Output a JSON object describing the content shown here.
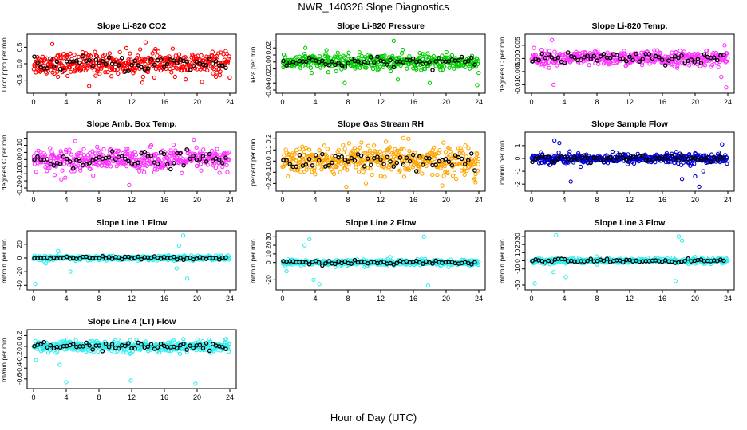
{
  "figure": {
    "title": "NWR_140326  Slope Diagnostics",
    "xlabel": "Hour of Day (UTC)"
  },
  "chart_data": [
    {
      "type": "scatter",
      "title": "Slope Li-820 CO2",
      "ylabel": "Licor ppm per min.",
      "xlim": [
        0,
        24
      ],
      "ylim": [
        -0.8,
        0.8
      ],
      "xticks": [
        "0",
        "4",
        "8",
        "12",
        "16",
        "20",
        "24"
      ],
      "yticks": [
        "-0.5",
        "0.0",
        "0.5"
      ],
      "ytick_values": [
        -0.5,
        0,
        0.5
      ],
      "color": "#ff0000",
      "spread": 0.3,
      "outliers": [
        [
          2.3,
          0.6
        ],
        [
          6.8,
          -0.68
        ],
        [
          13.7,
          0.65
        ],
        [
          20.6,
          -0.55
        ]
      ],
      "series": [
        {
          "name": "",
          "color": "#ff0000"
        },
        {
          "name": "",
          "color": "#000000"
        }
      ]
    },
    {
      "type": "scatter",
      "title": "Slope Li-820 Pressure",
      "ylabel": "kPa per min.",
      "xlim": [
        0,
        24
      ],
      "ylim": [
        -0.04,
        0.035
      ],
      "xticks": [
        "0",
        "4",
        "8",
        "12",
        "16",
        "20",
        "24"
      ],
      "yticks": [
        "-0.04",
        "-0.02",
        "0.00",
        "0.02"
      ],
      "ytick_values": [
        -0.04,
        -0.02,
        0,
        0.02
      ],
      "extra_yticks": [
        "-0.03",
        "-0.01",
        "0.01",
        "0.03"
      ],
      "extra_ytick_values": [
        -0.03,
        -0.01,
        0.01,
        0.03
      ],
      "color": "#00cc00",
      "spread": 0.01,
      "outliers": [
        [
          2.8,
          0.02
        ],
        [
          7.6,
          -0.03
        ],
        [
          13.6,
          0.03
        ],
        [
          14.1,
          -0.025
        ],
        [
          18.0,
          -0.03
        ],
        [
          23.8,
          -0.033
        ]
      ],
      "series": [
        {
          "name": "",
          "color": "#00cc00"
        },
        {
          "name": "",
          "color": "#000000"
        }
      ]
    },
    {
      "type": "scatter",
      "title": "Slope Li-820 Temp.",
      "ylabel": "degrees C per min.",
      "xlim": [
        0,
        24
      ],
      "ylim": [
        -0.012,
        0.008
      ],
      "xticks": [
        "0",
        "4",
        "8",
        "12",
        "16",
        "20",
        "24"
      ],
      "yticks": [
        "-0.010",
        "-0.005",
        "0.000",
        "0.005"
      ],
      "ytick_values": [
        -0.01,
        -0.005,
        0,
        0.005
      ],
      "color": "#ff33ff",
      "spread": 0.0025,
      "outliers": [
        [
          2.5,
          0.007
        ],
        [
          2.7,
          -0.01
        ],
        [
          0.3,
          0.004
        ],
        [
          23.2,
          -0.007
        ],
        [
          23.6,
          0.005
        ],
        [
          23.8,
          -0.011
        ]
      ],
      "series": [
        {
          "name": "",
          "color": "#ff33ff"
        },
        {
          "name": "",
          "color": "#000000"
        }
      ]
    },
    {
      "type": "scatter",
      "title": "Slope Amb. Box Temp.",
      "ylabel": "degrees C per min.",
      "xlim": [
        0,
        24
      ],
      "ylim": [
        -0.2,
        0.17
      ],
      "xticks": [
        "0",
        "4",
        "8",
        "12",
        "16",
        "20",
        "24"
      ],
      "yticks": [
        "-0.20",
        "-0.10",
        "0.00",
        "0.10"
      ],
      "ytick_values": [
        -0.2,
        -0.1,
        0,
        0.1
      ],
      "extra_yticks": [
        "-0.15",
        "-0.05",
        "0.05",
        "0.15"
      ],
      "extra_ytick_values": [
        -0.15,
        -0.05,
        0.05,
        0.15
      ],
      "color": "#ff33ff",
      "spread": 0.07,
      "outliers": [
        [
          11.7,
          -0.18
        ],
        [
          5.1,
          0.13
        ],
        [
          3.4,
          -0.14
        ],
        [
          19.6,
          0.14
        ]
      ],
      "series": [
        {
          "name": "",
          "color": "#ff33ff"
        },
        {
          "name": "",
          "color": "#000000"
        }
      ]
    },
    {
      "type": "scatter",
      "title": "Slope Gas Stream RH",
      "ylabel": "percent per min.",
      "xlim": [
        0,
        24
      ],
      "ylim": [
        -0.24,
        0.23
      ],
      "xticks": [
        "0",
        "4",
        "8",
        "12",
        "16",
        "20",
        "24"
      ],
      "yticks": [
        "-0.2",
        "-0.1",
        "0.0",
        "0.1",
        "0.2"
      ],
      "ytick_values": [
        -0.2,
        -0.1,
        0,
        0.1,
        0.2
      ],
      "color": "#ffa500",
      "spread": 0.12,
      "outliers": [
        [
          7.8,
          -0.23
        ],
        [
          15.4,
          0.2
        ],
        [
          23.6,
          -0.19
        ]
      ],
      "series": [
        {
          "name": "",
          "color": "#ffa500"
        },
        {
          "name": "",
          "color": "#000000"
        }
      ]
    },
    {
      "type": "scatter",
      "title": "Slope Sample Flow",
      "ylabel": "ml/min per min.",
      "xlim": [
        0,
        24
      ],
      "ylim": [
        -2.3,
        1.8
      ],
      "xticks": [
        "0",
        "4",
        "8",
        "12",
        "16",
        "20",
        "24"
      ],
      "yticks": [
        "-2",
        "-1",
        "0",
        "1"
      ],
      "ytick_values": [
        -2,
        -1,
        0,
        1
      ],
      "color": "#0000cc",
      "spread": 0.35,
      "outliers": [
        [
          4.8,
          -1.8
        ],
        [
          3.4,
          1.2
        ],
        [
          20.5,
          -2.2
        ],
        [
          20.0,
          -1.4
        ],
        [
          21.0,
          -1.0
        ],
        [
          23.3,
          1.1
        ],
        [
          2.8,
          1.4
        ],
        [
          18.4,
          -1.6
        ]
      ],
      "series": [
        {
          "name": "",
          "color": "#0000cc"
        },
        {
          "name": "",
          "color": "#000000"
        }
      ]
    },
    {
      "type": "scatter",
      "title": "Slope Line 1 Flow",
      "ylabel": "ml/min per min.",
      "xlim": [
        0,
        24
      ],
      "ylim": [
        -42,
        35
      ],
      "xticks": [
        "0",
        "4",
        "8",
        "12",
        "16",
        "20",
        "24"
      ],
      "yticks": [
        "-40",
        "-20",
        "0",
        "20"
      ],
      "ytick_values": [
        -40,
        -20,
        0,
        20
      ],
      "color": "#33eeee",
      "spread": 3,
      "outliers": [
        [
          0.2,
          -38
        ],
        [
          4.5,
          -20
        ],
        [
          18.3,
          33
        ],
        [
          17.8,
          18
        ],
        [
          17.5,
          -15
        ],
        [
          18.8,
          -30
        ],
        [
          3.0,
          10
        ],
        [
          1.5,
          -8
        ]
      ],
      "series": [
        {
          "name": "",
          "color": "#33eeee"
        },
        {
          "name": "",
          "color": "#000000"
        }
      ]
    },
    {
      "type": "scatter",
      "title": "Slope Line 2 Flow",
      "ylabel": "ml/min per min.",
      "xlim": [
        0,
        24
      ],
      "ylim": [
        -28,
        33
      ],
      "xticks": [
        "0",
        "4",
        "8",
        "12",
        "16",
        "20",
        "24"
      ],
      "yticks": [
        "-20",
        "0",
        "10",
        "20",
        "30"
      ],
      "ytick_values": [
        -20,
        0,
        10,
        20,
        30
      ],
      "color": "#33eeee",
      "spread": 3,
      "outliers": [
        [
          3.3,
          27
        ],
        [
          3.8,
          -20
        ],
        [
          4.5,
          -25
        ],
        [
          17.3,
          30
        ],
        [
          17.8,
          -27
        ],
        [
          0.5,
          -10
        ],
        [
          2.7,
          20
        ]
      ],
      "series": [
        {
          "name": "",
          "color": "#33eeee"
        },
        {
          "name": "",
          "color": "#000000"
        }
      ]
    },
    {
      "type": "scatter",
      "title": "Slope Line 3 Flow",
      "ylabel": "ml/min per min.",
      "xlim": [
        0,
        24
      ],
      "ylim": [
        -32,
        33
      ],
      "xticks": [
        "0",
        "4",
        "8",
        "12",
        "16",
        "20",
        "24"
      ],
      "yticks": [
        "-30",
        "-10",
        "0",
        "10",
        "20",
        "30"
      ],
      "ytick_values": [
        -30,
        -10,
        0,
        10,
        20,
        30
      ],
      "color": "#33eeee",
      "spread": 3,
      "outliers": [
        [
          3.0,
          32
        ],
        [
          0.4,
          -28
        ],
        [
          18.0,
          30
        ],
        [
          18.4,
          25
        ],
        [
          17.6,
          -25
        ],
        [
          2.7,
          -14
        ],
        [
          4.2,
          -20
        ]
      ],
      "series": [
        {
          "name": "",
          "color": "#33eeee"
        },
        {
          "name": "",
          "color": "#000000"
        }
      ]
    },
    {
      "type": "scatter",
      "title": "Slope Line 4 (LT) Flow",
      "ylabel": "ml/min per min.",
      "xlim": [
        0,
        24
      ],
      "ylim": [
        -0.72,
        0.25
      ],
      "xticks": [
        "0",
        "4",
        "8",
        "12",
        "16",
        "20",
        "24"
      ],
      "yticks": [
        "-0.6",
        "-0.4",
        "-0.2",
        "0.0",
        "0.2"
      ],
      "ytick_values": [
        -0.6,
        -0.4,
        -0.2,
        0,
        0.2
      ],
      "color": "#33eeee",
      "spread": 0.09,
      "outliers": [
        [
          4.0,
          -0.66
        ],
        [
          11.9,
          -0.63
        ],
        [
          19.8,
          -0.69
        ],
        [
          3.2,
          -0.34
        ],
        [
          0.3,
          -0.25
        ]
      ],
      "series": [
        {
          "name": "",
          "color": "#33eeee"
        },
        {
          "name": "",
          "color": "#000000"
        }
      ]
    }
  ]
}
